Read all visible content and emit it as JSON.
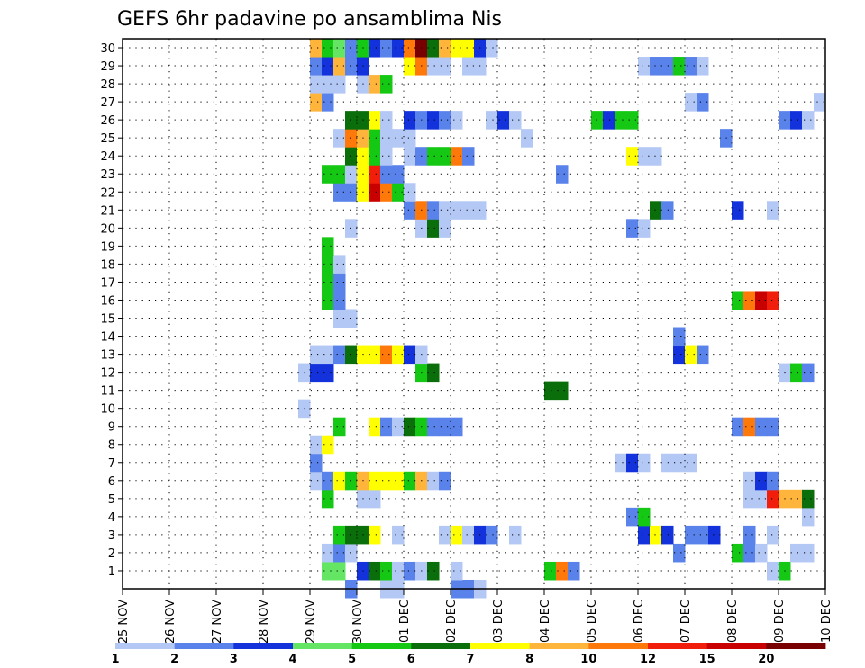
{
  "chart_data": {
    "type": "heatmap",
    "title": "GEFS 6hr padavine po ansamblima Nis",
    "x_tick_labels": [
      "25 NOV",
      "26 NOV",
      "27 NOV",
      "28 NOV",
      "29 NOV",
      "30 NOV",
      "01 DEC",
      "02 DEC",
      "03 DEC",
      "04 DEC",
      "05 DEC",
      "06 DEC",
      "07 DEC",
      "08 DEC",
      "09 DEC",
      "10 DEC"
    ],
    "y_tick_labels": [
      "1",
      "2",
      "3",
      "4",
      "5",
      "6",
      "7",
      "8",
      "9",
      "10",
      "11",
      "12",
      "13",
      "14",
      "15",
      "16",
      "17",
      "18",
      "19",
      "20",
      "21",
      "22",
      "23",
      "24",
      "25",
      "26",
      "27",
      "28",
      "29",
      "30"
    ],
    "steps_per_day": 4,
    "grid": true,
    "legend": {
      "placement": "bottom",
      "levels": [
        "1",
        "2",
        "3",
        "4",
        "5",
        "6",
        "7",
        "8",
        "10",
        "12",
        "15",
        "20"
      ],
      "colors": [
        "#b4c8f5",
        "#5a82eb",
        "#1432dc",
        "#64e664",
        "#14c814",
        "#0a6e0a",
        "#ffff00",
        "#ffb43c",
        "#ff780a",
        "#f01e0a",
        "#c80000",
        "#780000"
      ]
    },
    "members": [
      {
        "y": 0,
        "cells": [
          [
            19,
            2
          ],
          [
            22,
            1
          ],
          [
            23,
            1
          ],
          [
            28,
            2
          ],
          [
            29,
            2
          ],
          [
            30,
            1
          ]
        ]
      },
      {
        "y": 1,
        "cells": [
          [
            17,
            4
          ],
          [
            18,
            4
          ],
          [
            20,
            3
          ],
          [
            21,
            6
          ],
          [
            22,
            5
          ],
          [
            23,
            1
          ],
          [
            24,
            2
          ],
          [
            25,
            1
          ],
          [
            26,
            6
          ],
          [
            28,
            1
          ],
          [
            36,
            5
          ],
          [
            37,
            9
          ],
          [
            38,
            2
          ],
          [
            55,
            1
          ],
          [
            56,
            5
          ]
        ]
      },
      {
        "y": 2,
        "cells": [
          [
            17,
            1
          ],
          [
            18,
            2
          ],
          [
            19,
            1
          ],
          [
            47,
            2
          ],
          [
            52,
            5
          ],
          [
            53,
            2
          ],
          [
            54,
            1
          ],
          [
            57,
            1
          ],
          [
            58,
            1
          ]
        ]
      },
      {
        "y": 3,
        "cells": [
          [
            18,
            5
          ],
          [
            19,
            6
          ],
          [
            20,
            6
          ],
          [
            21,
            7
          ],
          [
            23,
            1
          ],
          [
            27,
            1
          ],
          [
            28,
            7
          ],
          [
            29,
            1
          ],
          [
            30,
            3
          ],
          [
            31,
            2
          ],
          [
            33,
            1
          ],
          [
            44,
            3
          ],
          [
            45,
            7
          ],
          [
            46,
            3
          ],
          [
            48,
            2
          ],
          [
            49,
            2
          ],
          [
            50,
            3
          ],
          [
            53,
            2
          ],
          [
            55,
            1
          ]
        ]
      },
      {
        "y": 4,
        "cells": [
          [
            43,
            2
          ],
          [
            44,
            5
          ],
          [
            58,
            1
          ]
        ]
      },
      {
        "y": 5,
        "cells": [
          [
            17,
            5
          ],
          [
            20,
            1
          ],
          [
            21,
            1
          ],
          [
            53,
            1
          ],
          [
            54,
            1
          ],
          [
            55,
            10
          ],
          [
            56,
            8
          ],
          [
            57,
            8
          ],
          [
            58,
            6
          ]
        ]
      },
      {
        "y": 6,
        "cells": [
          [
            16,
            1
          ],
          [
            17,
            2
          ],
          [
            18,
            7
          ],
          [
            19,
            5
          ],
          [
            20,
            8
          ],
          [
            21,
            7
          ],
          [
            22,
            7
          ],
          [
            23,
            7
          ],
          [
            24,
            5
          ],
          [
            25,
            8
          ],
          [
            26,
            1
          ],
          [
            27,
            2
          ],
          [
            53,
            1
          ],
          [
            54,
            3
          ],
          [
            55,
            2
          ]
        ]
      },
      {
        "y": 7,
        "cells": [
          [
            16,
            2
          ],
          [
            42,
            1
          ],
          [
            43,
            3
          ],
          [
            44,
            1
          ],
          [
            46,
            1
          ],
          [
            47,
            1
          ],
          [
            48,
            1
          ]
        ]
      },
      {
        "y": 8,
        "cells": [
          [
            16,
            1
          ],
          [
            17,
            7
          ]
        ]
      },
      {
        "y": 9,
        "cells": [
          [
            18,
            5
          ],
          [
            21,
            7
          ],
          [
            22,
            2
          ],
          [
            23,
            1
          ],
          [
            24,
            6
          ],
          [
            25,
            5
          ],
          [
            26,
            2
          ],
          [
            27,
            2
          ],
          [
            28,
            2
          ],
          [
            52,
            2
          ],
          [
            53,
            9
          ],
          [
            54,
            2
          ],
          [
            55,
            2
          ]
        ]
      },
      {
        "y": 10,
        "cells": [
          [
            15,
            1
          ]
        ]
      },
      {
        "y": 11,
        "cells": [
          [
            36,
            6
          ],
          [
            37,
            6
          ]
        ]
      },
      {
        "y": 12,
        "cells": [
          [
            15,
            1
          ],
          [
            16,
            3
          ],
          [
            17,
            3
          ],
          [
            25,
            5
          ],
          [
            26,
            6
          ],
          [
            56,
            1
          ],
          [
            57,
            5
          ],
          [
            58,
            2
          ]
        ]
      },
      {
        "y": 13,
        "cells": [
          [
            16,
            1
          ],
          [
            17,
            1
          ],
          [
            18,
            2
          ],
          [
            19,
            6
          ],
          [
            20,
            7
          ],
          [
            21,
            7
          ],
          [
            22,
            9
          ],
          [
            23,
            7
          ],
          [
            24,
            3
          ],
          [
            25,
            1
          ],
          [
            47,
            3
          ],
          [
            48,
            7
          ],
          [
            49,
            2
          ]
        ]
      },
      {
        "y": 14,
        "cells": [
          [
            47,
            2
          ]
        ]
      },
      {
        "y": 15,
        "cells": [
          [
            18,
            1
          ],
          [
            19,
            1
          ]
        ]
      },
      {
        "y": 16,
        "cells": [
          [
            17,
            5
          ],
          [
            18,
            2
          ],
          [
            52,
            5
          ],
          [
            53,
            9
          ],
          [
            54,
            11
          ],
          [
            55,
            10
          ]
        ]
      },
      {
        "y": 17,
        "cells": [
          [
            17,
            5
          ],
          [
            18,
            2
          ]
        ]
      },
      {
        "y": 18,
        "cells": [
          [
            17,
            5
          ],
          [
            18,
            1
          ]
        ]
      },
      {
        "y": 19,
        "cells": [
          [
            17,
            5
          ]
        ]
      },
      {
        "y": 20,
        "cells": [
          [
            19,
            1
          ],
          [
            25,
            1
          ],
          [
            26,
            6
          ],
          [
            27,
            1
          ],
          [
            43,
            2
          ],
          [
            44,
            1
          ]
        ]
      },
      {
        "y": 21,
        "cells": [
          [
            24,
            2
          ],
          [
            25,
            9
          ],
          [
            26,
            2
          ],
          [
            27,
            1
          ],
          [
            28,
            1
          ],
          [
            29,
            1
          ],
          [
            30,
            1
          ],
          [
            45,
            6
          ],
          [
            46,
            2
          ],
          [
            52,
            3
          ],
          [
            55,
            1
          ]
        ]
      },
      {
        "y": 22,
        "cells": [
          [
            18,
            2
          ],
          [
            19,
            2
          ],
          [
            20,
            7
          ],
          [
            21,
            11
          ],
          [
            22,
            9
          ],
          [
            23,
            5
          ],
          [
            24,
            1
          ]
        ]
      },
      {
        "y": 23,
        "cells": [
          [
            17,
            5
          ],
          [
            18,
            5
          ],
          [
            19,
            1
          ],
          [
            20,
            7
          ],
          [
            21,
            10
          ],
          [
            22,
            2
          ],
          [
            23,
            2
          ],
          [
            37,
            2
          ]
        ]
      },
      {
        "y": 24,
        "cells": [
          [
            19,
            6
          ],
          [
            20,
            7
          ],
          [
            21,
            5
          ],
          [
            22,
            1
          ],
          [
            24,
            1
          ],
          [
            25,
            2
          ],
          [
            26,
            5
          ],
          [
            27,
            5
          ],
          [
            28,
            9
          ],
          [
            29,
            2
          ],
          [
            43,
            7
          ],
          [
            44,
            1
          ],
          [
            45,
            1
          ]
        ]
      },
      {
        "y": 25,
        "cells": [
          [
            18,
            1
          ],
          [
            19,
            9
          ],
          [
            20,
            8
          ],
          [
            21,
            5
          ],
          [
            22,
            1
          ],
          [
            23,
            1
          ],
          [
            24,
            1
          ],
          [
            34,
            1
          ],
          [
            51,
            2
          ]
        ]
      },
      {
        "y": 26,
        "cells": [
          [
            19,
            6
          ],
          [
            20,
            6
          ],
          [
            21,
            7
          ],
          [
            22,
            1
          ],
          [
            24,
            3
          ],
          [
            25,
            2
          ],
          [
            26,
            3
          ],
          [
            27,
            2
          ],
          [
            28,
            1
          ],
          [
            31,
            1
          ],
          [
            32,
            3
          ],
          [
            33,
            1
          ],
          [
            40,
            5
          ],
          [
            41,
            3
          ],
          [
            42,
            5
          ],
          [
            43,
            5
          ],
          [
            56,
            2
          ],
          [
            57,
            3
          ],
          [
            58,
            1
          ]
        ]
      },
      {
        "y": 27,
        "cells": [
          [
            16,
            8
          ],
          [
            17,
            2
          ],
          [
            48,
            1
          ],
          [
            49,
            2
          ],
          [
            59,
            1
          ]
        ]
      },
      {
        "y": 28,
        "cells": [
          [
            16,
            1
          ],
          [
            17,
            1
          ],
          [
            18,
            1
          ],
          [
            20,
            1
          ],
          [
            21,
            8
          ],
          [
            22,
            5
          ]
        ]
      },
      {
        "y": 29,
        "cells": [
          [
            16,
            2
          ],
          [
            17,
            3
          ],
          [
            18,
            8
          ],
          [
            19,
            2
          ],
          [
            20,
            3
          ],
          [
            24,
            7
          ],
          [
            25,
            9
          ],
          [
            26,
            1
          ],
          [
            27,
            1
          ],
          [
            29,
            1
          ],
          [
            30,
            1
          ],
          [
            44,
            1
          ],
          [
            45,
            2
          ],
          [
            46,
            2
          ],
          [
            47,
            5
          ],
          [
            48,
            2
          ],
          [
            49,
            1
          ]
        ]
      },
      {
        "y": 30,
        "cells": [
          [
            16,
            8
          ],
          [
            17,
            5
          ],
          [
            18,
            4
          ],
          [
            19,
            2
          ],
          [
            20,
            5
          ],
          [
            21,
            3
          ],
          [
            22,
            2
          ],
          [
            23,
            3
          ],
          [
            24,
            9
          ],
          [
            25,
            12
          ],
          [
            26,
            6
          ],
          [
            27,
            8
          ],
          [
            28,
            7
          ],
          [
            29,
            7
          ],
          [
            30,
            3
          ],
          [
            31,
            1
          ]
        ]
      }
    ]
  }
}
